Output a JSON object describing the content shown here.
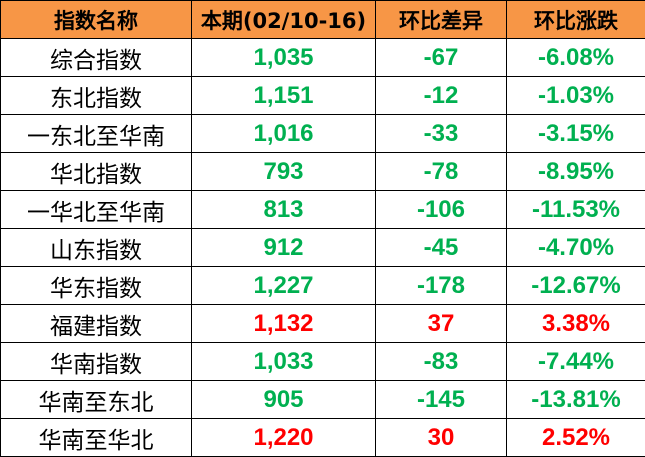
{
  "colors": {
    "header_bg": "#F79646",
    "down": "#00B050",
    "up": "#FF0000"
  },
  "headers": [
    "指数名称",
    "本期(02/10-16)",
    "环比差异",
    "环比涨跌"
  ],
  "rows": [
    {
      "name": "综合指数",
      "value": "1,035",
      "diff": "-67",
      "pct": "-6.08%",
      "trend": "down"
    },
    {
      "name": "东北指数",
      "value": "1,151",
      "diff": "-12",
      "pct": "-1.03%",
      "trend": "down"
    },
    {
      "name": "一东北至华南",
      "value": "1,016",
      "diff": "-33",
      "pct": "-3.15%",
      "trend": "down"
    },
    {
      "name": "华北指数",
      "value": "793",
      "diff": "-78",
      "pct": "-8.95%",
      "trend": "down"
    },
    {
      "name": "一华北至华南",
      "value": "813",
      "diff": "-106",
      "pct": "-11.53%",
      "trend": "down"
    },
    {
      "name": "山东指数",
      "value": "912",
      "diff": "-45",
      "pct": "-4.70%",
      "trend": "down"
    },
    {
      "name": "华东指数",
      "value": "1,227",
      "diff": "-178",
      "pct": "-12.67%",
      "trend": "down"
    },
    {
      "name": "福建指数",
      "value": "1,132",
      "diff": "37",
      "pct": "3.38%",
      "trend": "up"
    },
    {
      "name": "华南指数",
      "value": "1,033",
      "diff": "-83",
      "pct": "-7.44%",
      "trend": "down"
    },
    {
      "name": "华南至东北",
      "value": "905",
      "diff": "-145",
      "pct": "-13.81%",
      "trend": "down"
    },
    {
      "name": "华南至华北",
      "value": "1,220",
      "diff": "30",
      "pct": "2.52%",
      "trend": "up"
    }
  ]
}
